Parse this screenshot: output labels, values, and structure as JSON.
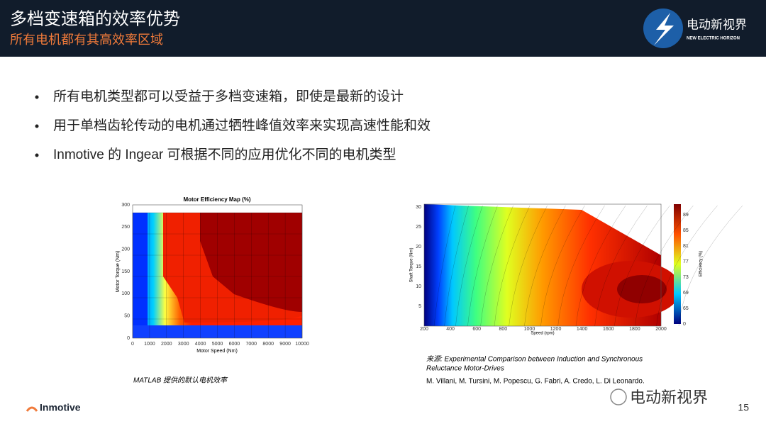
{
  "header": {
    "title": "多档变速箱的效率优势",
    "subtitle": "所有电机都有其高效率区域",
    "logo_name": "电动新视界",
    "logo_tagline": "NEW ELECTRIC HORIZON"
  },
  "bullets": [
    "所有电机类型都可以受益于多档变速箱，即使是最新的设计",
    "用于单档齿轮传动的电机通过牺牲峰值效率来实现高速性能和效",
    "Inmotive 的 Ingear 可根据不同的应用优化不同的电机类型"
  ],
  "figure_left": {
    "title": "Motor Efficiency Map (%)",
    "y_label": "Motor Torque (Nm)",
    "x_label": "Motor Speed (Nm)",
    "y_ticks": [
      "0",
      "50",
      "100",
      "150",
      "200",
      "250",
      "300"
    ],
    "x_ticks": [
      "0",
      "1000",
      "2000",
      "3000",
      "4000",
      "5000",
      "6000",
      "7000",
      "8000",
      "9000",
      "10000"
    ],
    "caption": "MATLAB 提供的默认电机效率"
  },
  "figure_right": {
    "y_label": "Shaft Torque (Nm)",
    "x_label": "Speed (rpm)",
    "colorbar_label": "Efficiency (%)",
    "y_ticks": [
      "5",
      "10",
      "15",
      "20",
      "25",
      "30"
    ],
    "x_ticks": [
      "200",
      "400",
      "600",
      "800",
      "1000",
      "1200",
      "1400",
      "1600",
      "1800",
      "2000"
    ],
    "colorbar_ticks": [
      "0",
      "65",
      "69",
      "73",
      "77",
      "81",
      "85",
      "89"
    ],
    "source_line_1": "来源: Experimental Comparison between Induction and Synchronous",
    "source_line_2": "Reluctance Motor-Drives",
    "authors": "M. Villani, M. Tursini, M. Popescu, G. Fabri, A. Credo, L. Di Leonardo."
  },
  "footer": {
    "brand": "Inmotive",
    "watermark": "电动新视界",
    "page_number": "15"
  }
}
